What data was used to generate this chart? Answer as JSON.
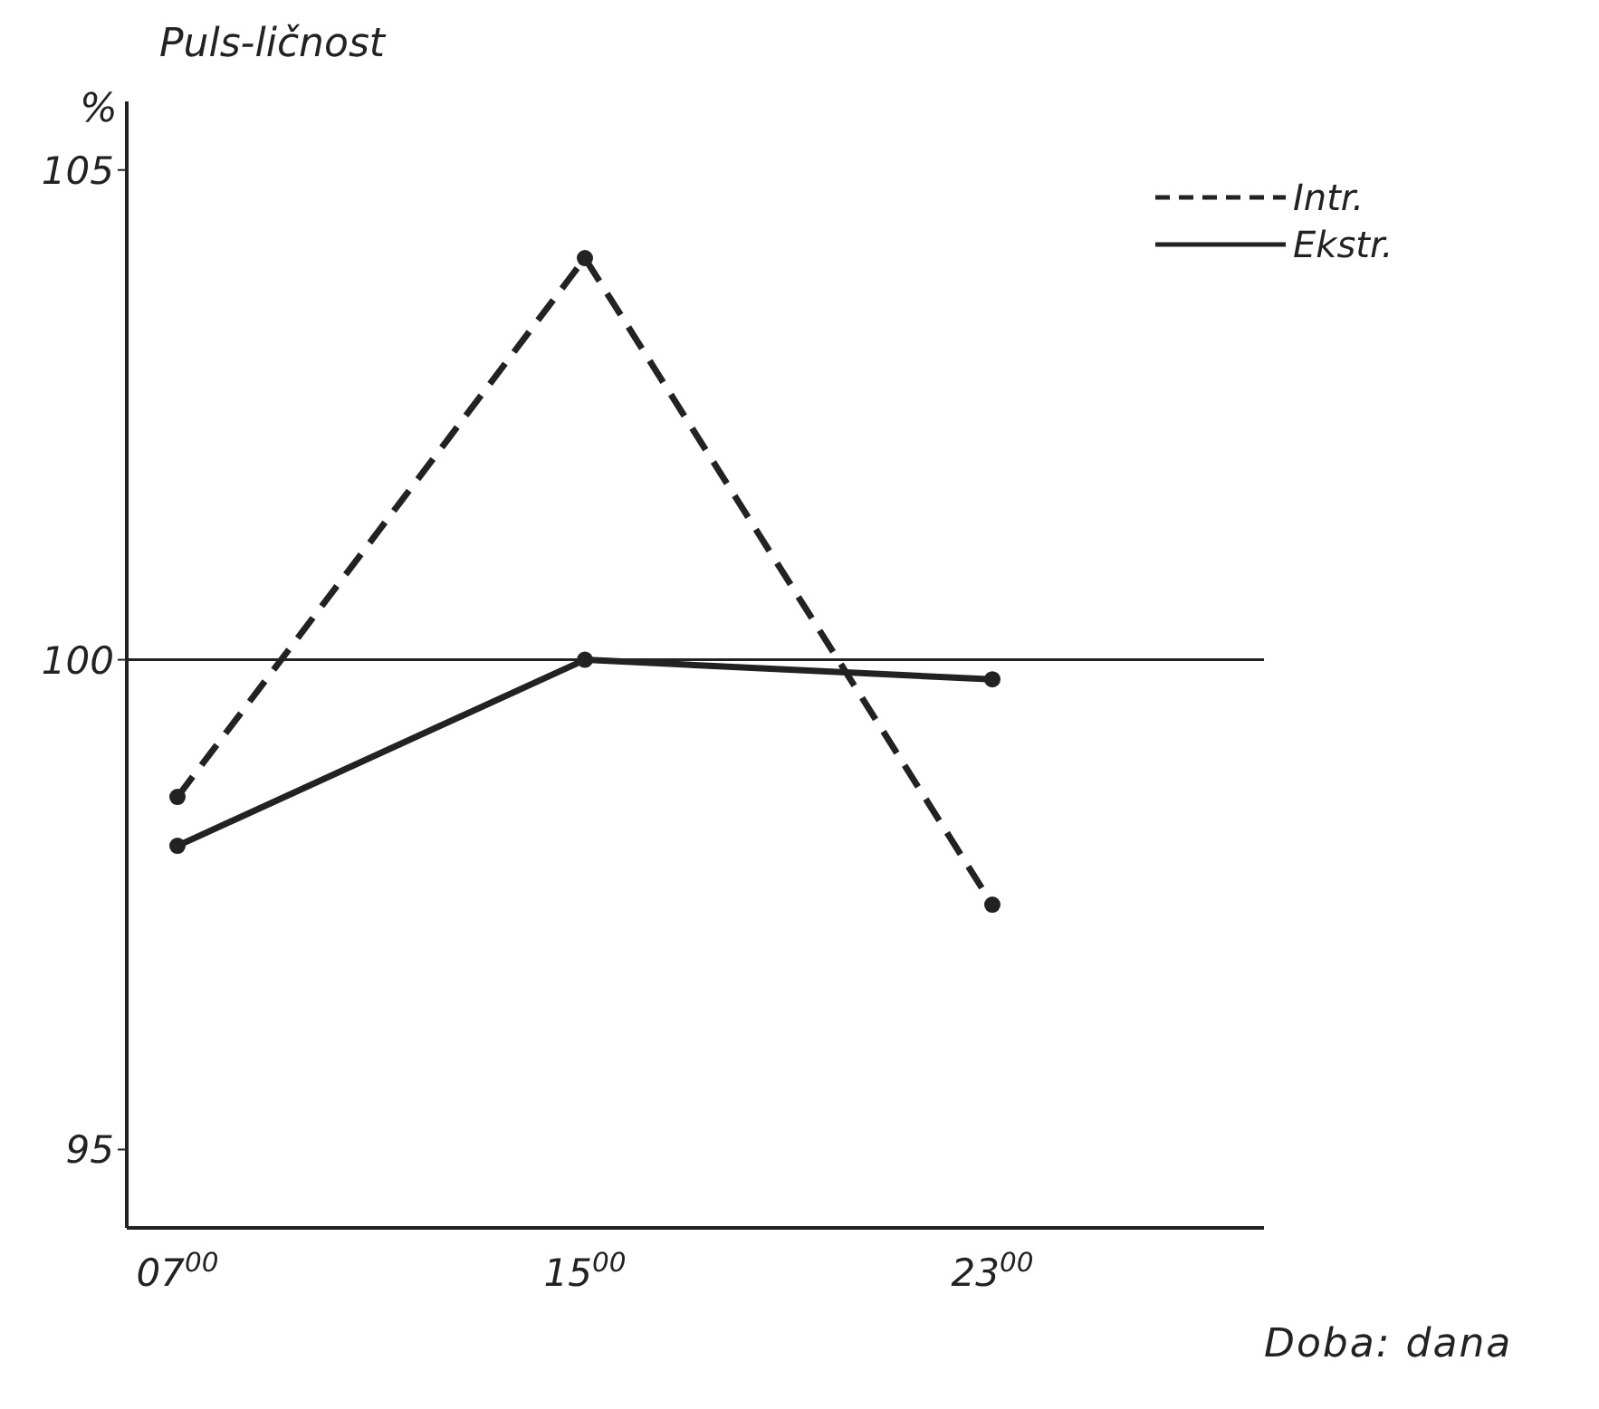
{
  "chart_data": {
    "type": "line",
    "title": "Puls-ličnost",
    "ylabel": "%",
    "xlabel": "Doba: dana",
    "categories": [
      "07$^{00}$",
      "15$^{00}$",
      "23$^{00}$"
    ],
    "series": [
      {
        "name": "Intr.",
        "color": "#222222",
        "line_style": "dashed",
        "values": [
          98.6,
          104.1,
          97.5
        ]
      },
      {
        "name": "Ekstr.",
        "color": "#222222",
        "line_style": "solid",
        "values": [
          98.1,
          100,
          99.8
        ]
      }
    ],
    "ylim": [
      94.2,
      105.7
    ],
    "yticks": [
      95,
      100,
      105
    ],
    "legend": "top right",
    "marker": "circle",
    "ref_lines": [
      {
        "axis": "y",
        "value": 100,
        "label": null,
        "color": "#222222",
        "line_style": "solid"
      }
    ]
  }
}
